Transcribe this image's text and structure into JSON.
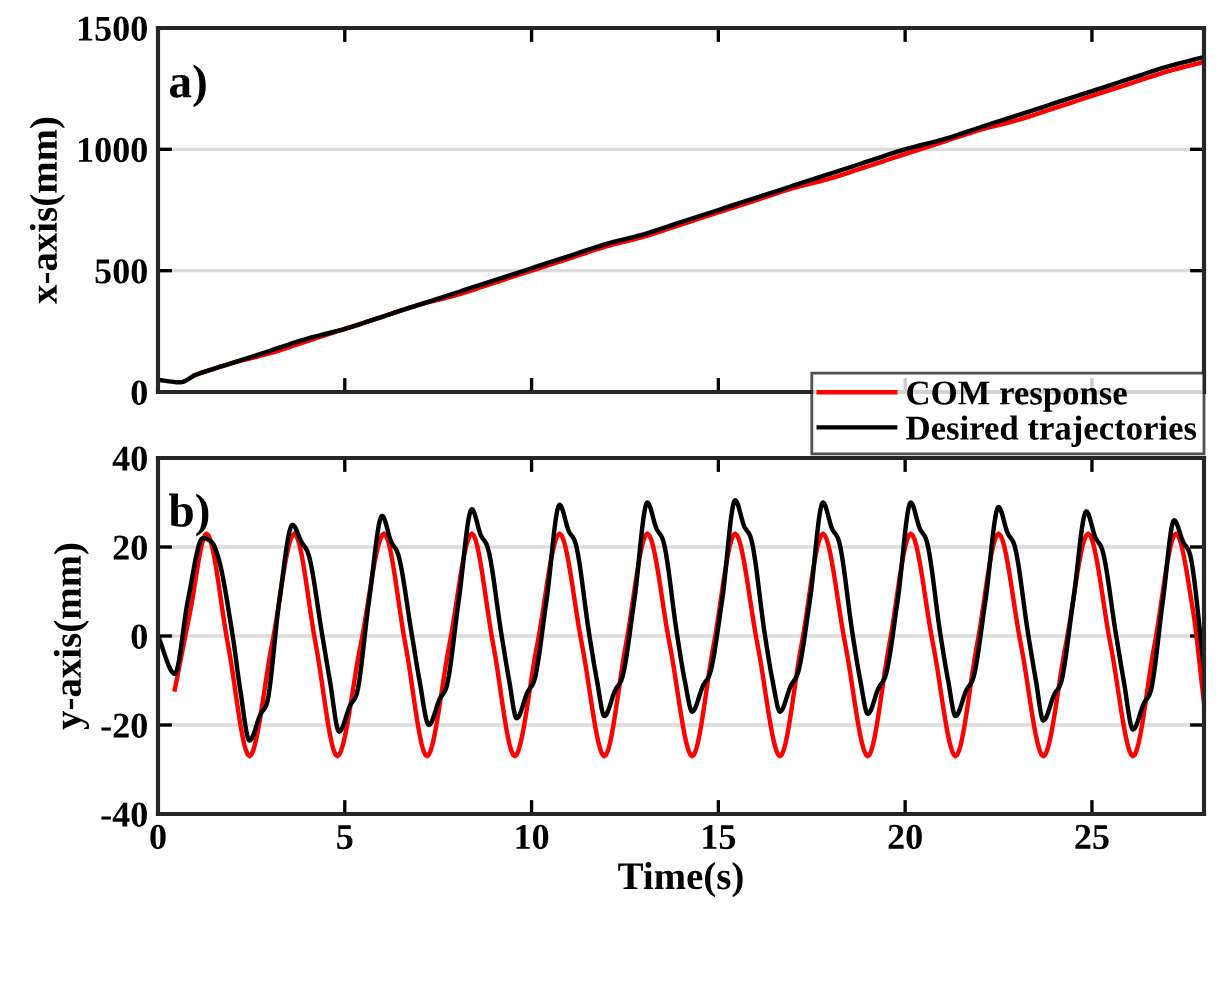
{
  "chart_data": [
    {
      "type": "line",
      "ylabel": "x-axis(mm)",
      "annotations": [
        "a)"
      ],
      "xlim": [
        0,
        28
      ],
      "xticks": [
        {
          "value": 0,
          "label": null
        },
        {
          "value": 5,
          "label": null
        },
        {
          "value": 10,
          "label": null
        },
        {
          "value": 15,
          "label": null
        },
        {
          "value": 20,
          "label": null
        },
        {
          "value": 25,
          "label": null
        }
      ],
      "ylim": [
        0,
        1500
      ],
      "yticks": [
        0,
        500,
        1000,
        1500
      ],
      "grid": "y",
      "legend": "bottom right",
      "tick_labels": "y",
      "x": [
        0,
        0.6,
        1,
        2,
        3,
        4,
        5,
        6,
        7,
        8,
        9,
        10,
        11,
        12,
        13,
        14,
        15,
        16,
        17,
        18,
        19,
        20,
        21,
        22,
        23,
        24,
        25,
        26,
        27,
        28
      ],
      "series": [
        {
          "name": "COM response",
          "color": "#ff0000",
          "values": [
            null,
            null,
            70,
            120,
            160,
            210,
            260,
            310,
            360,
            400,
            450,
            500,
            550,
            600,
            640,
            690,
            740,
            790,
            840,
            880,
            930,
            980,
            1030,
            1080,
            1120,
            1170,
            1220,
            1270,
            1320,
            1360
          ]
        },
        {
          "name": "Desired trajectories",
          "color": "#000000",
          "values": [
            50,
            40,
            70,
            120,
            170,
            220,
            260,
            310,
            360,
            410,
            460,
            510,
            560,
            610,
            650,
            700,
            750,
            800,
            850,
            900,
            950,
            1000,
            1040,
            1090,
            1140,
            1190,
            1240,
            1290,
            1340,
            1380
          ]
        }
      ]
    },
    {
      "type": "line",
      "xlabel": "Time(s)",
      "ylabel": "y-axis(mm)",
      "annotations": [
        "b)"
      ],
      "xlim": [
        0,
        28
      ],
      "xticks": [
        0,
        5,
        10,
        15,
        20,
        25
      ],
      "ylim": [
        -40,
        40
      ],
      "yticks": [
        -40,
        -20,
        0,
        20,
        40
      ],
      "grid": "y",
      "series": [
        {
          "color": "#ff0000",
          "x": [
            0.45,
            0.85,
            1.3,
            1.875,
            2.45,
            3.05,
            3.65,
            4.225,
            4.8,
            5.425,
            6.05,
            6.625,
            7.2,
            7.8,
            8.4,
            8.975,
            9.55,
            10.15,
            10.75,
            11.35,
            11.95,
            12.525,
            13.1,
            13.7,
            14.3,
            14.875,
            15.45,
            16.05,
            16.65,
            17.225,
            17.8,
            18.4,
            19.0,
            19.575,
            20.15,
            20.75,
            21.35,
            21.925,
            22.5,
            23.1,
            23.7,
            24.3,
            24.9,
            25.5,
            26.1,
            26.675,
            27.25,
            27.7,
            28
          ],
          "values": [
            -12,
            5,
            23,
            -2,
            -27,
            -2,
            23,
            -2,
            -27,
            -2,
            23,
            -2,
            -27,
            -2,
            23,
            -2,
            -27,
            -2,
            23,
            -2,
            -27,
            -2,
            23,
            -2,
            -27,
            -2,
            23,
            -2,
            -27,
            -2,
            23,
            -2,
            -27,
            -2,
            23,
            -2,
            -27,
            -2,
            23,
            -2,
            -27,
            -2,
            23,
            -2,
            -27,
            -2,
            23,
            6,
            -15
          ]
        },
        {
          "color": "#000000",
          "x": [
            0,
            0.45,
            0.8,
            1.2,
            1.45,
            1.6,
            2.0,
            2.2,
            2.45,
            2.75,
            2.9,
            3.25,
            3.6,
            3.85,
            4.0,
            4.4,
            4.6,
            4.85,
            5.15,
            5.3,
            5.65,
            6.0,
            6.25,
            6.4,
            6.8,
            7.0,
            7.25,
            7.55,
            7.7,
            8.05,
            8.4,
            8.65,
            8.8,
            9.2,
            9.4,
            9.6,
            9.9,
            10.05,
            10.4,
            10.75,
            11.0,
            11.15,
            11.55,
            11.75,
            11.95,
            12.25,
            12.4,
            12.75,
            13.1,
            13.35,
            13.5,
            13.9,
            14.1,
            14.3,
            14.6,
            14.75,
            15.1,
            15.45,
            15.7,
            15.85,
            16.25,
            16.45,
            16.65,
            16.95,
            17.1,
            17.45,
            17.8,
            18.05,
            18.2,
            18.6,
            18.8,
            19.0,
            19.3,
            19.45,
            19.8,
            20.15,
            20.4,
            20.55,
            20.95,
            21.15,
            21.35,
            21.65,
            21.8,
            22.15,
            22.5,
            22.75,
            22.9,
            23.3,
            23.5,
            23.7,
            24.0,
            24.15,
            24.5,
            24.85,
            25.1,
            25.25,
            25.65,
            25.85,
            26.1,
            26.4,
            26.55,
            26.9,
            27.2,
            27.45,
            27.6,
            28.0
          ],
          "values": [
            0,
            -8.5,
            8,
            22,
            21,
            18,
            0,
            -12,
            -23.5,
            -17.5,
            -15.5,
            8,
            25,
            21,
            19,
            0,
            -10,
            -21.5,
            -15.5,
            -13.5,
            8,
            27,
            21,
            19,
            0,
            -10,
            -20,
            -14,
            -12,
            8,
            28.5,
            22.5,
            20.5,
            0,
            -10,
            -18.5,
            -12.5,
            -10.5,
            8,
            29.5,
            23.5,
            21.5,
            0,
            -10,
            -18,
            -12,
            -10,
            8,
            30,
            24,
            22,
            0,
            -10,
            -17,
            -11,
            -9,
            8,
            30.5,
            24.5,
            22.5,
            0,
            -10,
            -17,
            -11,
            -9,
            8,
            30,
            24,
            22,
            0,
            -10,
            -17.5,
            -11.5,
            -9.5,
            8,
            30,
            24,
            22,
            0,
            -10,
            -18,
            -12,
            -10,
            8,
            29,
            23,
            21,
            0,
            -10,
            -19,
            -13,
            -11,
            8,
            28,
            22,
            20,
            0,
            -10,
            -21,
            -15,
            -13,
            8,
            26,
            21,
            19,
            -7
          ]
        }
      ]
    }
  ]
}
